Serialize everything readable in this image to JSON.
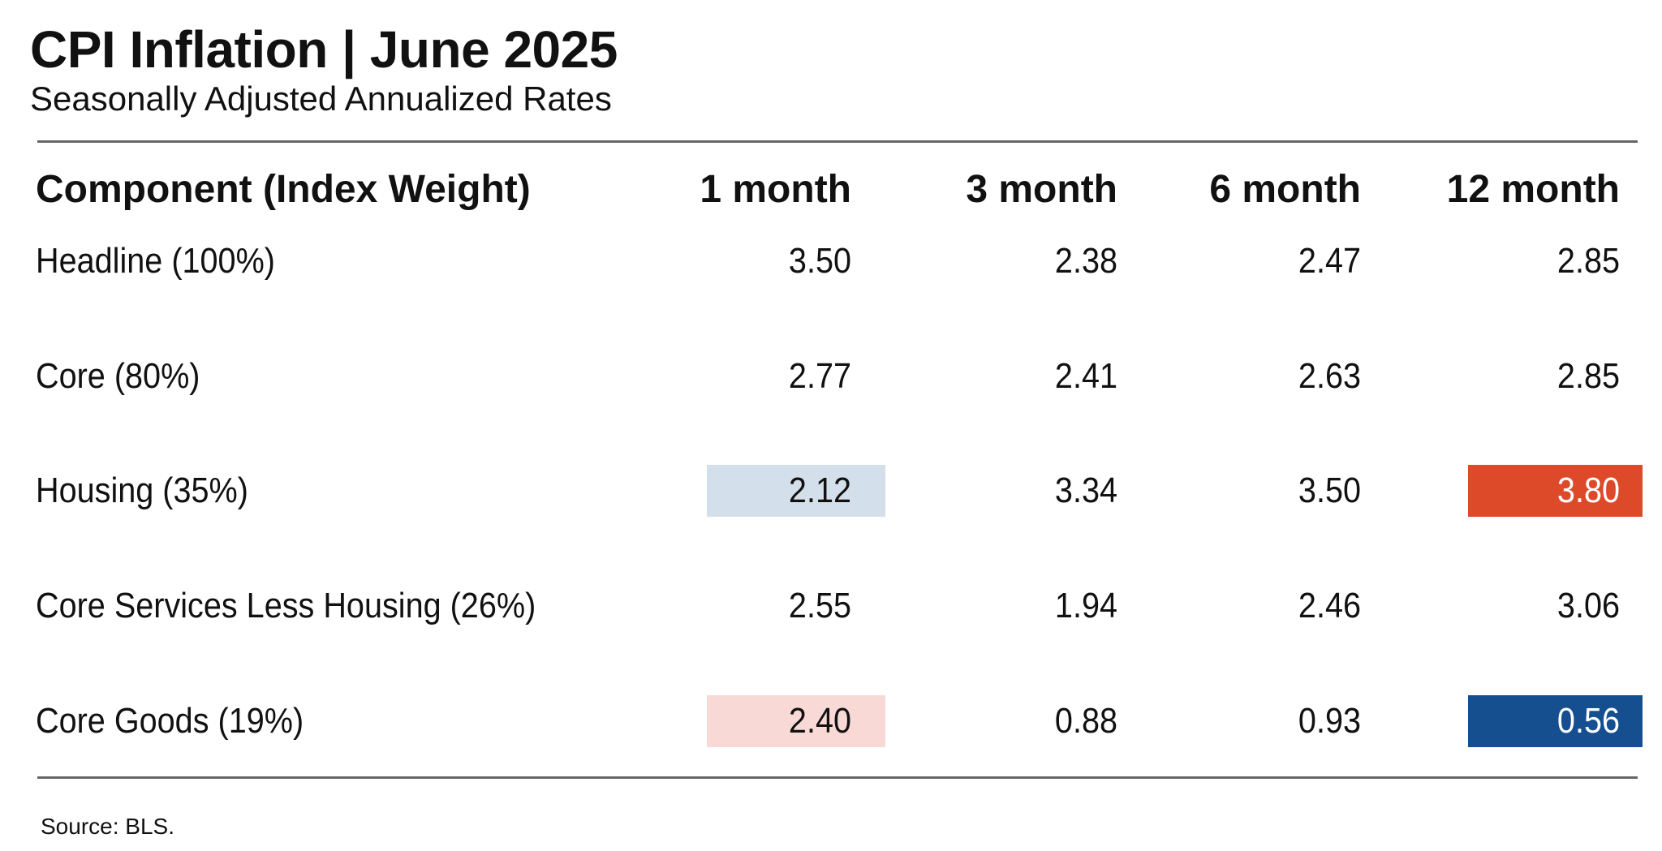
{
  "chart_data": {
    "type": "table",
    "title": "CPI Inflation | June 2025",
    "subtitle": "Seasonally Adjusted Annualized Rates",
    "columns": [
      "Component (Index Weight)",
      "1 month",
      "3 month",
      "6 month",
      "12 month"
    ],
    "rows": [
      {
        "label": "Headline (100%)",
        "values": [
          "3.50",
          "2.38",
          "2.47",
          "2.85"
        ]
      },
      {
        "label": "Core (80%)",
        "values": [
          "2.77",
          "2.41",
          "2.63",
          "2.85"
        ]
      },
      {
        "label": "Housing (35%)",
        "values": [
          "2.12",
          "3.34",
          "3.50",
          "3.80"
        ]
      },
      {
        "label": "Core Services Less Housing (26%)",
        "values": [
          "2.55",
          "1.94",
          "2.46",
          "3.06"
        ]
      },
      {
        "label": "Core Goods (19%)",
        "values": [
          "2.40",
          "0.88",
          "0.93",
          "0.56"
        ]
      }
    ],
    "highlights": [
      {
        "row": 2,
        "col": 0,
        "color": "#d3dfea",
        "text_color": "#111111"
      },
      {
        "row": 2,
        "col": 3,
        "color": "#dc4a2a",
        "text_color": "#ffffff"
      },
      {
        "row": 4,
        "col": 0,
        "color": "#f8d9d5",
        "text_color": "#111111"
      },
      {
        "row": 4,
        "col": 3,
        "color": "#164f8f",
        "text_color": "#ffffff"
      }
    ],
    "source": "Source: BLS."
  }
}
